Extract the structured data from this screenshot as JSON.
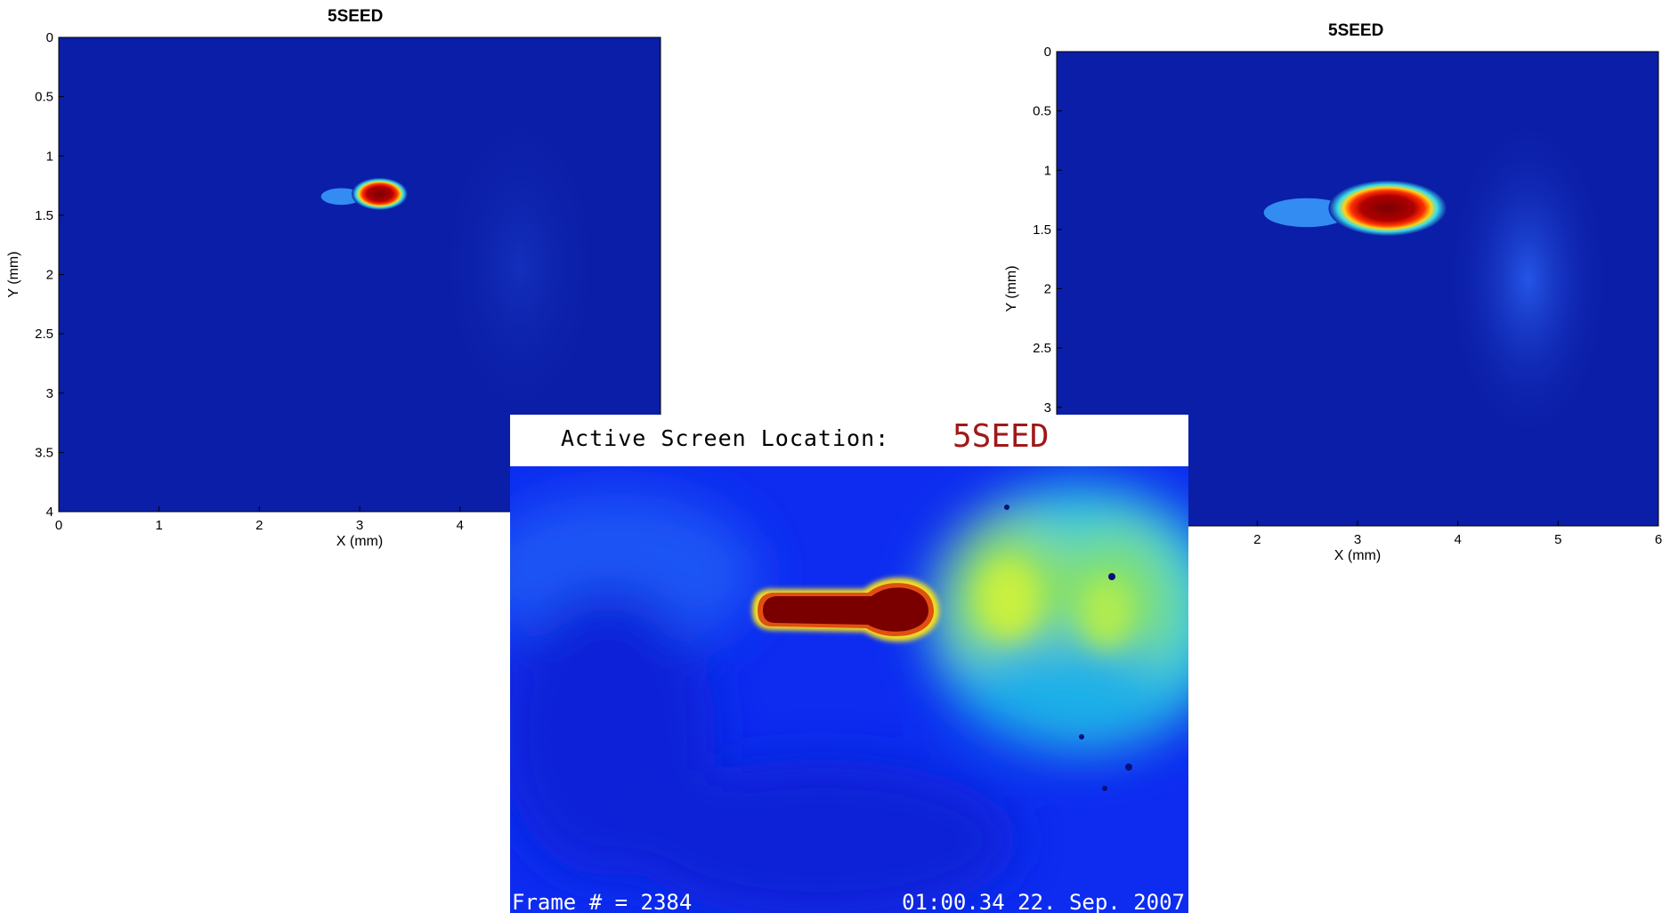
{
  "chart_data": [
    {
      "type": "heatmap",
      "title": "5SEED",
      "xlabel": "X (mm)",
      "ylabel": "Y (mm)",
      "xlim": [
        0,
        6
      ],
      "ylim": [
        0,
        4
      ],
      "y_inverted": true,
      "x_ticks": [
        "0",
        "1",
        "2",
        "3",
        "4"
      ],
      "y_ticks": [
        "0",
        "0.5",
        "1",
        "1.5",
        "2",
        "2.5",
        "3",
        "3.5",
        "4"
      ],
      "colormap": "jet",
      "background_color": "#0b1ea8",
      "beam_spot": {
        "x_center": 3.2,
        "y_center": 1.32,
        "x_width": 0.45,
        "y_width": 0.22
      }
    },
    {
      "type": "heatmap",
      "title": "5SEED",
      "xlabel": "X (mm)",
      "ylabel": "Y (mm)",
      "xlim": [
        0,
        6
      ],
      "ylim": [
        0,
        4
      ],
      "y_inverted": true,
      "x_ticks": [
        "2",
        "3",
        "4",
        "5",
        "6"
      ],
      "y_ticks": [
        "0",
        "0.5",
        "1",
        "1.5",
        "2",
        "2.5",
        "3"
      ],
      "colormap": "jet",
      "background_color": "#0b1ea8",
      "beam_spot": {
        "x_center": 3.3,
        "y_center": 1.32,
        "x_width": 0.95,
        "y_width": 0.38
      }
    }
  ],
  "camera": {
    "header_label": "Active Screen Location:",
    "header_value": "5SEED",
    "frame_text": "Frame # = 2384",
    "timestamp": "01:00.34 22. Sep. 2007",
    "colors": {
      "background": "#0d2cf0",
      "beam": "#7a0000",
      "header_value": "#a01818"
    }
  }
}
